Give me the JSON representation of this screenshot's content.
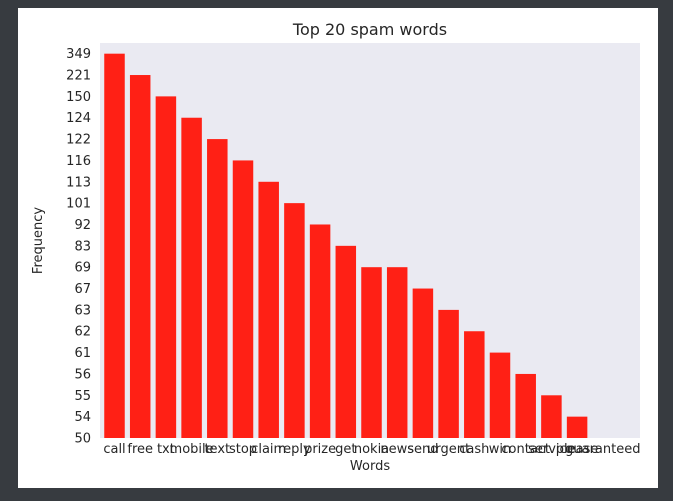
{
  "chart_data": {
    "type": "bar",
    "title": "Top 20 spam words",
    "xlabel": "Words",
    "ylabel": "Frequency",
    "categories": [
      "call",
      "free",
      "txt",
      "mobile",
      "text",
      "stop",
      "claim",
      "reply",
      "prize",
      "get",
      "nokia",
      "news",
      "send",
      "urgent",
      "cash",
      "win",
      "contact",
      "service",
      "please",
      "guaranteed"
    ],
    "values": [
      349,
      221,
      150,
      124,
      122,
      116,
      113,
      101,
      92,
      83,
      69,
      69,
      67,
      63,
      62,
      61,
      56,
      55,
      54,
      50
    ],
    "y_tick_labels": [
      "349",
      "221",
      "150",
      "124",
      "122",
      "116",
      "113",
      "101",
      "92",
      "83",
      "69",
      "67",
      "63",
      "62",
      "61",
      "56",
      "55",
      "54",
      "50"
    ],
    "y_axis_note": "categorical y axis: ticks are the distinct frequency values in sorted order",
    "grid": false,
    "colors": {
      "bar": "#ff2015",
      "plot_background": "#eaeaf2"
    }
  }
}
